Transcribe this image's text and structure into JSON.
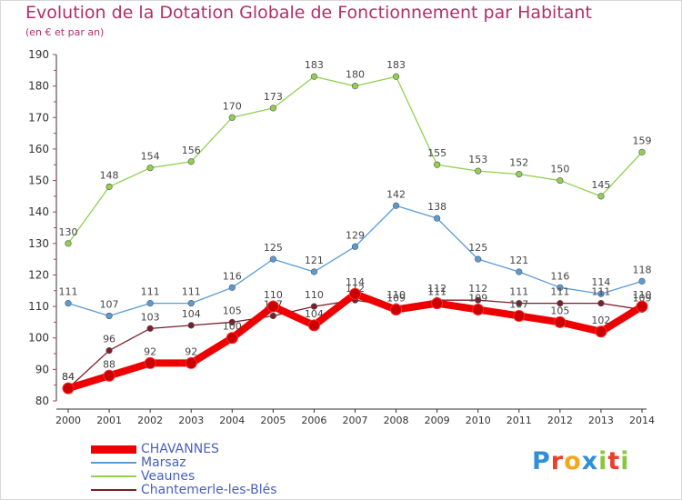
{
  "title": "Evolution de la Dotation Globale de Fonctionnement par Habitant",
  "subtitle": "(en € et par an)",
  "logo": {
    "letters": [
      "P",
      "r",
      "o",
      "x",
      "i",
      "t",
      "i"
    ],
    "colors": [
      "#2f8fd8",
      "#e8402a",
      "#f2a81c",
      "#2f8fd8",
      "#8cc63f",
      "#e8402a",
      "#8cc63f"
    ]
  },
  "chart_data": {
    "type": "line",
    "title": "Evolution de la Dotation Globale de Fonctionnement par Habitant",
    "subtitle": "(en € et par an)",
    "xlabel": "",
    "ylabel": "",
    "x": [
      "2000",
      "2001",
      "2002",
      "2003",
      "2004",
      "2005",
      "2006",
      "2007",
      "2008",
      "2009",
      "2010",
      "2011",
      "2012",
      "2013",
      "2014"
    ],
    "ylim": [
      80,
      190
    ],
    "yticks": [
      80,
      90,
      100,
      110,
      120,
      130,
      140,
      150,
      160,
      170,
      180,
      190
    ],
    "grid": false,
    "legend_position": "bottom-left",
    "series": [
      {
        "name": "CHAVANNES",
        "color": "#ee0000",
        "values": [
          84,
          88,
          92,
          92,
          100,
          110,
          104,
          114,
          109,
          111,
          109,
          107,
          105,
          102,
          110
        ],
        "labels": [
          "84",
          "88",
          "92",
          "92",
          "100",
          "110",
          "104",
          "114",
          "109",
          "111",
          "109",
          "107",
          "105",
          "102",
          "110"
        ]
      },
      {
        "name": "Marsaz",
        "color": "#5b9bd5",
        "values": [
          111,
          107,
          111,
          111,
          116,
          125,
          121,
          129,
          142,
          138,
          125,
          121,
          116,
          114,
          118
        ],
        "labels": [
          "111",
          "107",
          "111",
          "111",
          "116",
          "125",
          "121",
          "129",
          "142",
          "138",
          "125",
          "121",
          "116",
          "114",
          "118"
        ]
      },
      {
        "name": "Veaunes",
        "color": "#92d050",
        "values": [
          130,
          148,
          154,
          156,
          170,
          173,
          183,
          180,
          183,
          155,
          153,
          152,
          150,
          145,
          159
        ],
        "labels": [
          "130",
          "148",
          "154",
          "156",
          "170",
          "173",
          "183",
          "180",
          "183",
          "155",
          "153",
          "152",
          "150",
          "145",
          "159"
        ]
      },
      {
        "name": "Chantemerle-les-Blés",
        "color": "#7a1f2b",
        "values": [
          84,
          96,
          103,
          104,
          105,
          107,
          110,
          112,
          110,
          112,
          112,
          111,
          111,
          111,
          109
        ],
        "labels": [
          "84",
          "96",
          "103",
          "104",
          "105",
          "107",
          "110",
          "112",
          "110",
          "112",
          "112",
          "111",
          "111",
          "111",
          "109"
        ]
      }
    ]
  }
}
